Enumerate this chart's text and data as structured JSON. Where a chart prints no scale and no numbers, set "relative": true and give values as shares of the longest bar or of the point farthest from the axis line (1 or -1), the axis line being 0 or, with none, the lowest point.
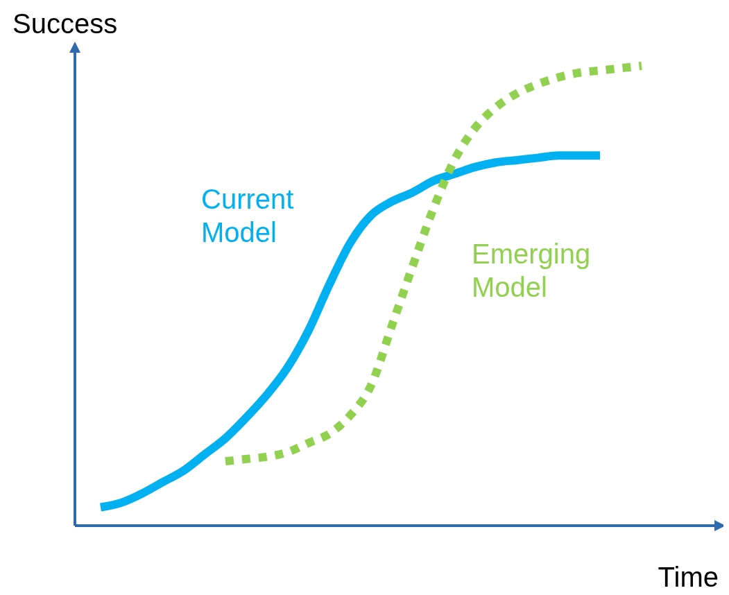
{
  "chart_data": {
    "type": "line",
    "relative": true,
    "xlabel": "Time",
    "ylabel": "Success",
    "categories": [
      null,
      null,
      null,
      null,
      null,
      null,
      null,
      null,
      null,
      null,
      null,
      null,
      null,
      null,
      null,
      null,
      null,
      null,
      null,
      null,
      null,
      null,
      null,
      null,
      null,
      null,
      null
    ],
    "series": [
      {
        "name": "Current Model",
        "color": "#00b0f0",
        "line_style": "solid",
        "values": [
          0.04,
          0.05,
          0.07,
          0.095,
          0.12,
          0.155,
          0.19,
          0.235,
          0.285,
          0.345,
          0.425,
          0.525,
          0.615,
          0.675,
          0.705,
          0.725,
          0.75,
          0.765,
          0.78,
          0.79,
          0.795,
          0.8,
          0.805,
          0.805,
          0.805,
          null,
          null
        ]
      },
      {
        "name": "Emerging Model",
        "color": "#92d050",
        "line_style": "dotted",
        "values": [
          null,
          null,
          null,
          null,
          null,
          null,
          0.14,
          0.145,
          0.15,
          0.16,
          0.18,
          0.2,
          0.24,
          0.305,
          0.435,
          0.565,
          0.69,
          0.795,
          0.865,
          0.91,
          0.94,
          0.96,
          0.975,
          0.985,
          0.99,
          0.995,
          1
        ]
      }
    ]
  }
}
